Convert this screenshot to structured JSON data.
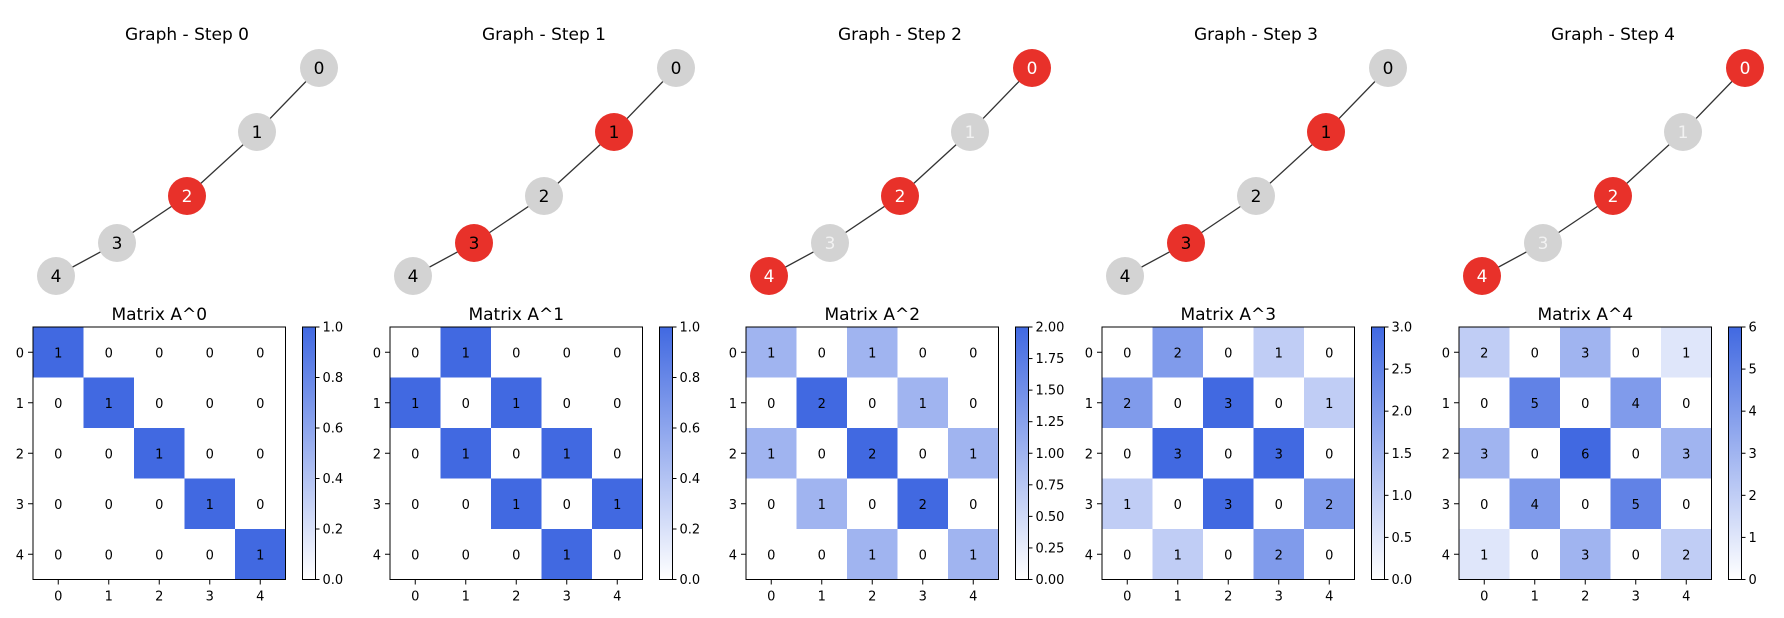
{
  "chart_data": [
    {
      "type": "graph",
      "title": "Graph - Step 0",
      "nodes": [
        "0",
        "1",
        "2",
        "3",
        "4"
      ],
      "edges": [
        [
          0,
          1
        ],
        [
          1,
          2
        ],
        [
          2,
          3
        ],
        [
          3,
          4
        ]
      ],
      "highlighted": [
        2
      ]
    },
    {
      "type": "graph",
      "title": "Graph - Step 1",
      "nodes": [
        "0",
        "1",
        "2",
        "3",
        "4"
      ],
      "edges": [
        [
          0,
          1
        ],
        [
          1,
          2
        ],
        [
          2,
          3
        ],
        [
          3,
          4
        ]
      ],
      "highlighted": [
        1,
        3
      ]
    },
    {
      "type": "graph",
      "title": "Graph - Step 2",
      "nodes": [
        "0",
        "1",
        "2",
        "3",
        "4"
      ],
      "edges": [
        [
          0,
          1
        ],
        [
          1,
          2
        ],
        [
          2,
          3
        ],
        [
          3,
          4
        ]
      ],
      "highlighted": [
        0,
        2,
        4
      ]
    },
    {
      "type": "graph",
      "title": "Graph - Step 3",
      "nodes": [
        "0",
        "1",
        "2",
        "3",
        "4"
      ],
      "edges": [
        [
          0,
          1
        ],
        [
          1,
          2
        ],
        [
          2,
          3
        ],
        [
          3,
          4
        ]
      ],
      "highlighted": [
        1,
        3
      ]
    },
    {
      "type": "graph",
      "title": "Graph - Step 4",
      "nodes": [
        "0",
        "1",
        "2",
        "3",
        "4"
      ],
      "edges": [
        [
          0,
          1
        ],
        [
          1,
          2
        ],
        [
          2,
          3
        ],
        [
          3,
          4
        ]
      ],
      "highlighted": [
        0,
        2,
        4
      ]
    },
    {
      "type": "heatmap",
      "title": "Matrix A^0",
      "x": [
        "0",
        "1",
        "2",
        "3",
        "4"
      ],
      "y": [
        "0",
        "1",
        "2",
        "3",
        "4"
      ],
      "values": [
        [
          1,
          0,
          0,
          0,
          0
        ],
        [
          0,
          1,
          0,
          0,
          0
        ],
        [
          0,
          0,
          1,
          0,
          0
        ],
        [
          0,
          0,
          0,
          1,
          0
        ],
        [
          0,
          0,
          0,
          0,
          1
        ]
      ],
      "colorbar_range": [
        0,
        1
      ],
      "colorbar_ticks": [
        "0.0",
        "0.2",
        "0.4",
        "0.6",
        "0.8",
        "1.0"
      ]
    },
    {
      "type": "heatmap",
      "title": "Matrix A^1",
      "x": [
        "0",
        "1",
        "2",
        "3",
        "4"
      ],
      "y": [
        "0",
        "1",
        "2",
        "3",
        "4"
      ],
      "values": [
        [
          0,
          1,
          0,
          0,
          0
        ],
        [
          1,
          0,
          1,
          0,
          0
        ],
        [
          0,
          1,
          0,
          1,
          0
        ],
        [
          0,
          0,
          1,
          0,
          1
        ],
        [
          0,
          0,
          0,
          1,
          0
        ]
      ],
      "colorbar_range": [
        0,
        1
      ],
      "colorbar_ticks": [
        "0.0",
        "0.2",
        "0.4",
        "0.6",
        "0.8",
        "1.0"
      ]
    },
    {
      "type": "heatmap",
      "title": "Matrix A^2",
      "x": [
        "0",
        "1",
        "2",
        "3",
        "4"
      ],
      "y": [
        "0",
        "1",
        "2",
        "3",
        "4"
      ],
      "values": [
        [
          1,
          0,
          1,
          0,
          0
        ],
        [
          0,
          2,
          0,
          1,
          0
        ],
        [
          1,
          0,
          2,
          0,
          1
        ],
        [
          0,
          1,
          0,
          2,
          0
        ],
        [
          0,
          0,
          1,
          0,
          1
        ]
      ],
      "colorbar_range": [
        0,
        2
      ],
      "colorbar_ticks": [
        "0.00",
        "0.25",
        "0.50",
        "0.75",
        "1.00",
        "1.25",
        "1.50",
        "1.75",
        "2.00"
      ]
    },
    {
      "type": "heatmap",
      "title": "Matrix A^3",
      "x": [
        "0",
        "1",
        "2",
        "3",
        "4"
      ],
      "y": [
        "0",
        "1",
        "2",
        "3",
        "4"
      ],
      "values": [
        [
          0,
          2,
          0,
          1,
          0
        ],
        [
          2,
          0,
          3,
          0,
          1
        ],
        [
          0,
          3,
          0,
          3,
          0
        ],
        [
          1,
          0,
          3,
          0,
          2
        ],
        [
          0,
          1,
          0,
          2,
          0
        ]
      ],
      "colorbar_range": [
        0,
        3
      ],
      "colorbar_ticks": [
        "0.0",
        "0.5",
        "1.0",
        "1.5",
        "2.0",
        "2.5",
        "3.0"
      ]
    },
    {
      "type": "heatmap",
      "title": "Matrix A^4",
      "x": [
        "0",
        "1",
        "2",
        "3",
        "4"
      ],
      "y": [
        "0",
        "1",
        "2",
        "3",
        "4"
      ],
      "values": [
        [
          2,
          0,
          3,
          0,
          1
        ],
        [
          0,
          5,
          0,
          4,
          0
        ],
        [
          3,
          0,
          6,
          0,
          3
        ],
        [
          0,
          4,
          0,
          5,
          0
        ],
        [
          1,
          0,
          3,
          0,
          2
        ]
      ],
      "colorbar_range": [
        0,
        6
      ],
      "colorbar_ticks": [
        "0",
        "1",
        "2",
        "3",
        "4",
        "5",
        "6"
      ]
    }
  ],
  "colors": {
    "node_default": "#d3d3d3",
    "node_highlight": "#e8312a",
    "edge": "#333333",
    "cmap_low": "#ffffff",
    "cmap_high": "#4169e1",
    "axis": "#000000"
  }
}
